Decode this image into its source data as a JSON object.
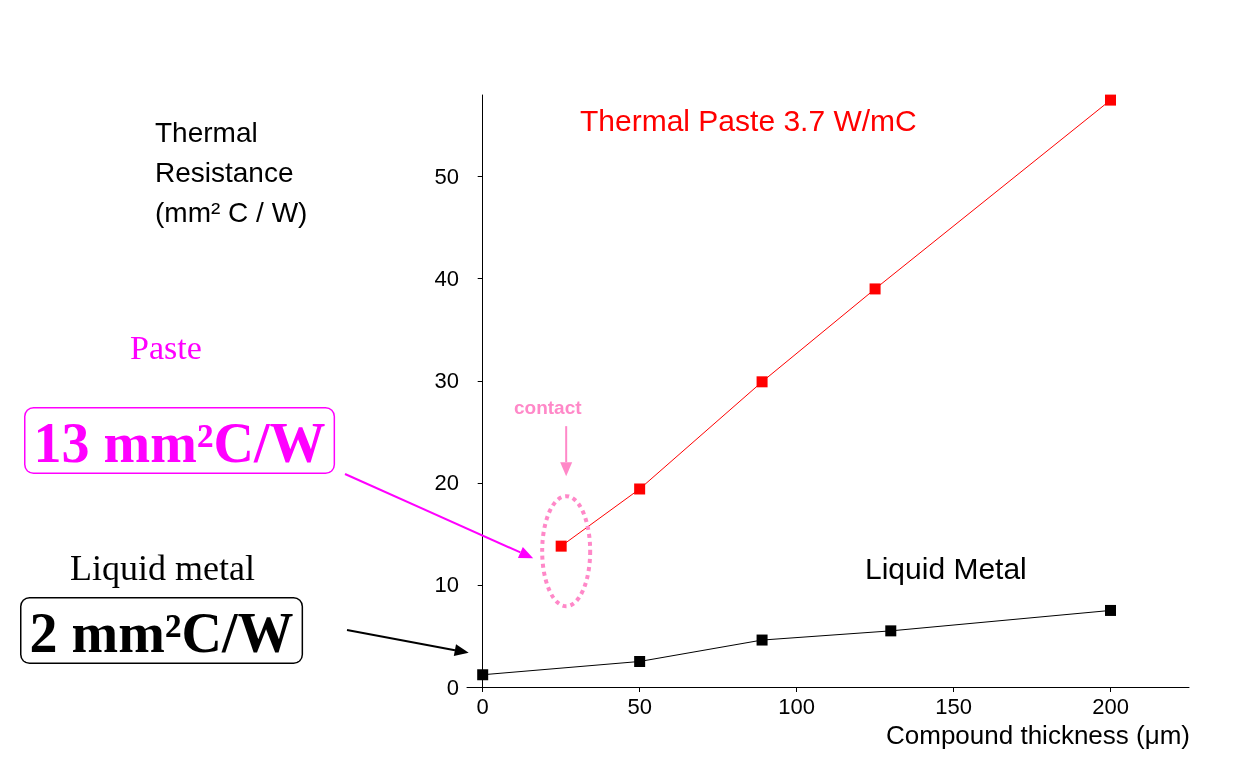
{
  "chart_data": {
    "type": "line",
    "xlabel": "Compound thickness (μm)",
    "ylabel": "Thermal Resistance (mm² C / W)",
    "xlim": [
      -5,
      225
    ],
    "xticks": [
      0,
      50,
      100,
      150,
      200
    ],
    "ylim": [
      0,
      58
    ],
    "yticks": [
      0,
      10,
      20,
      30,
      40,
      50
    ],
    "grid": false,
    "marker": "square",
    "line_style": "solid",
    "series": [
      {
        "name": "Thermal Paste 3.7 W/mC",
        "color": "#ff0000",
        "x": [
          25,
          50,
          89,
          125,
          200
        ],
        "values": [
          13.8,
          19.4,
          29.9,
          39,
          57.5
        ]
      },
      {
        "name": "Liquid Metal",
        "color": "#000000",
        "x": [
          0,
          50,
          89,
          130,
          200
        ],
        "values": [
          1.2,
          2.5,
          4.6,
          5.5,
          7.5
        ]
      }
    ],
    "annotations": [
      "Paste",
      "13 mm²C/W",
      "Liquid metal",
      "2 mm²C/W",
      "contact"
    ]
  }
}
